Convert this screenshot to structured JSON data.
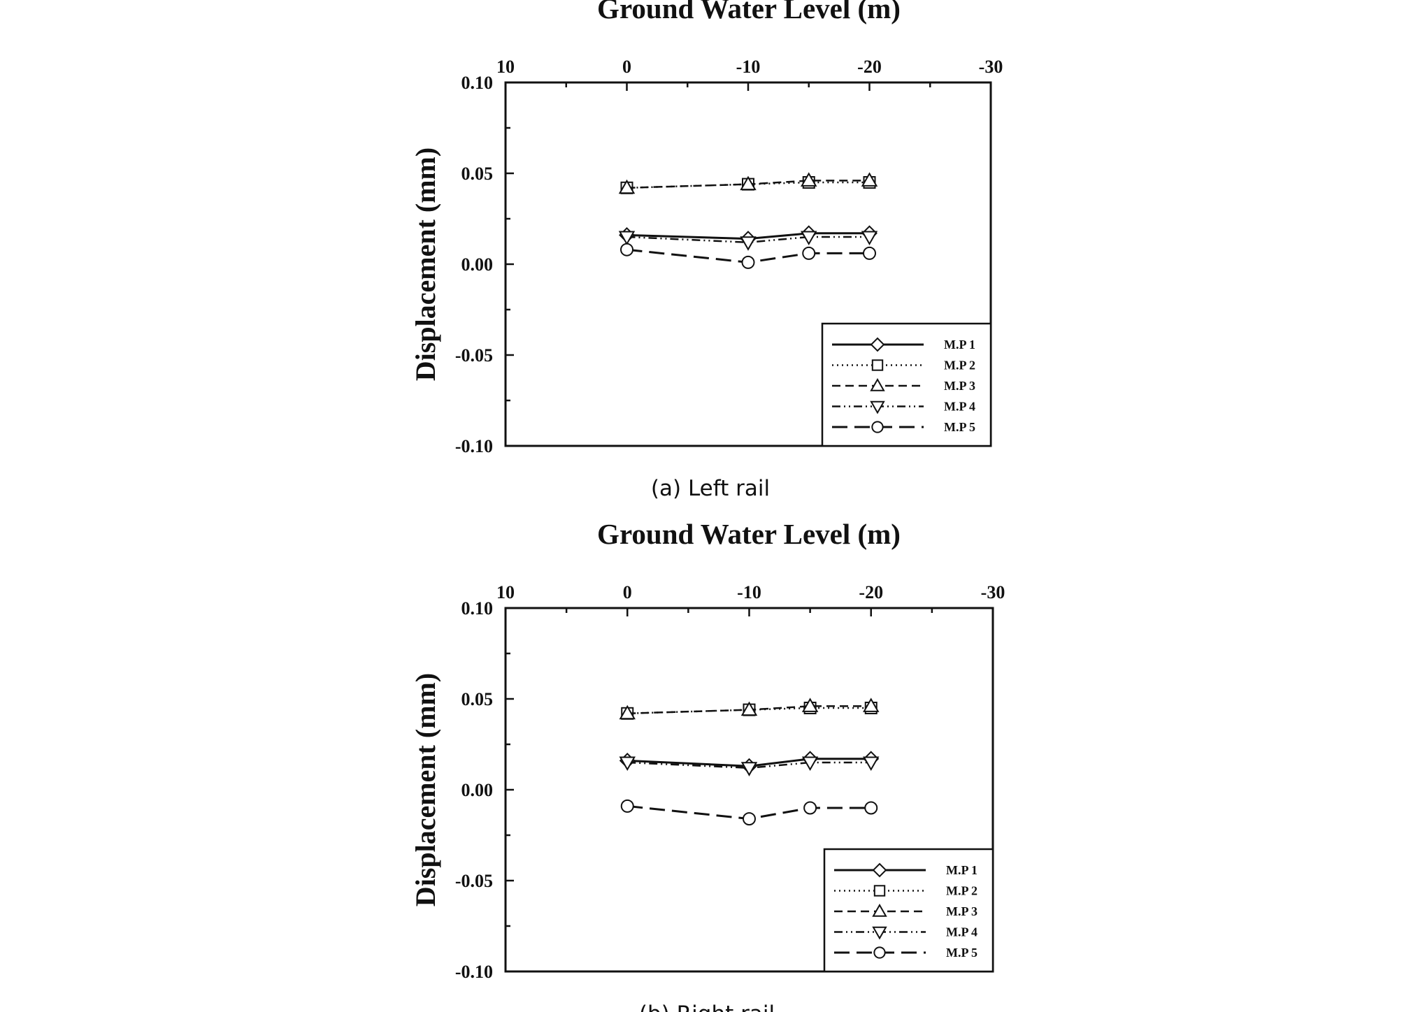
{
  "chart_data": [
    {
      "type": "line",
      "title": "Ground Water Level (m)",
      "caption": "(a) Left rail",
      "xlabel": "Ground Water Level (m)",
      "ylabel": "Displacement (mm)",
      "xlim": [
        10,
        -30
      ],
      "ylim": [
        -0.1,
        0.1
      ],
      "x_ticks": [
        "10",
        "0",
        "-10",
        "-20",
        "-30"
      ],
      "y_ticks": [
        "0.10",
        "0.05",
        "0.00",
        "-0.05",
        "-0.10"
      ],
      "legend_position": "bottom-right",
      "series": [
        {
          "name": "M.P 1",
          "marker": "diamond",
          "dash": "solid",
          "x": [
            0,
            -10,
            -15,
            -20
          ],
          "y": [
            0.016,
            0.014,
            0.017,
            0.017
          ]
        },
        {
          "name": "M.P 2",
          "marker": "square",
          "dash": "dotted",
          "x": [
            0,
            -10,
            -15,
            -20
          ],
          "y": [
            0.042,
            0.044,
            0.045,
            0.045
          ]
        },
        {
          "name": "M.P 3",
          "marker": "triangle-up",
          "dash": "dashed",
          "x": [
            0,
            -10,
            -15,
            -20
          ],
          "y": [
            0.042,
            0.044,
            0.046,
            0.046
          ]
        },
        {
          "name": "M.P 4",
          "marker": "triangle-down",
          "dash": "dashdotdot",
          "x": [
            0,
            -10,
            -15,
            -20
          ],
          "y": [
            0.015,
            0.012,
            0.015,
            0.015
          ]
        },
        {
          "name": "M.P 5",
          "marker": "circle",
          "dash": "longdash",
          "x": [
            0,
            -10,
            -15,
            -20
          ],
          "y": [
            0.008,
            0.001,
            0.006,
            0.006
          ]
        }
      ]
    },
    {
      "type": "line",
      "title": "Ground Water Level (m)",
      "caption": "(b) Right rail",
      "xlabel": "Ground Water Level (m)",
      "ylabel": "Displacement (mm)",
      "xlim": [
        10,
        -30
      ],
      "ylim": [
        -0.1,
        0.1
      ],
      "x_ticks": [
        "10",
        "0",
        "-10",
        "-20",
        "-30"
      ],
      "y_ticks": [
        "0.10",
        "0.05",
        "0.00",
        "-0.05",
        "-0.10"
      ],
      "legend_position": "bottom-right",
      "series": [
        {
          "name": "M.P 1",
          "marker": "diamond",
          "dash": "solid",
          "x": [
            0,
            -10,
            -15,
            -20
          ],
          "y": [
            0.016,
            0.013,
            0.017,
            0.017
          ]
        },
        {
          "name": "M.P 2",
          "marker": "square",
          "dash": "dotted",
          "x": [
            0,
            -10,
            -15,
            -20
          ],
          "y": [
            0.042,
            0.044,
            0.045,
            0.045
          ]
        },
        {
          "name": "M.P 3",
          "marker": "triangle-up",
          "dash": "dashed",
          "x": [
            0,
            -10,
            -15,
            -20
          ],
          "y": [
            0.042,
            0.044,
            0.046,
            0.046
          ]
        },
        {
          "name": "M.P 4",
          "marker": "triangle-down",
          "dash": "dashdotdot",
          "x": [
            0,
            -10,
            -15,
            -20
          ],
          "y": [
            0.015,
            0.012,
            0.015,
            0.015
          ]
        },
        {
          "name": "M.P 5",
          "marker": "circle",
          "dash": "longdash",
          "x": [
            0,
            -10,
            -15,
            -20
          ],
          "y": [
            -0.009,
            -0.016,
            -0.01,
            -0.01
          ]
        }
      ]
    }
  ]
}
